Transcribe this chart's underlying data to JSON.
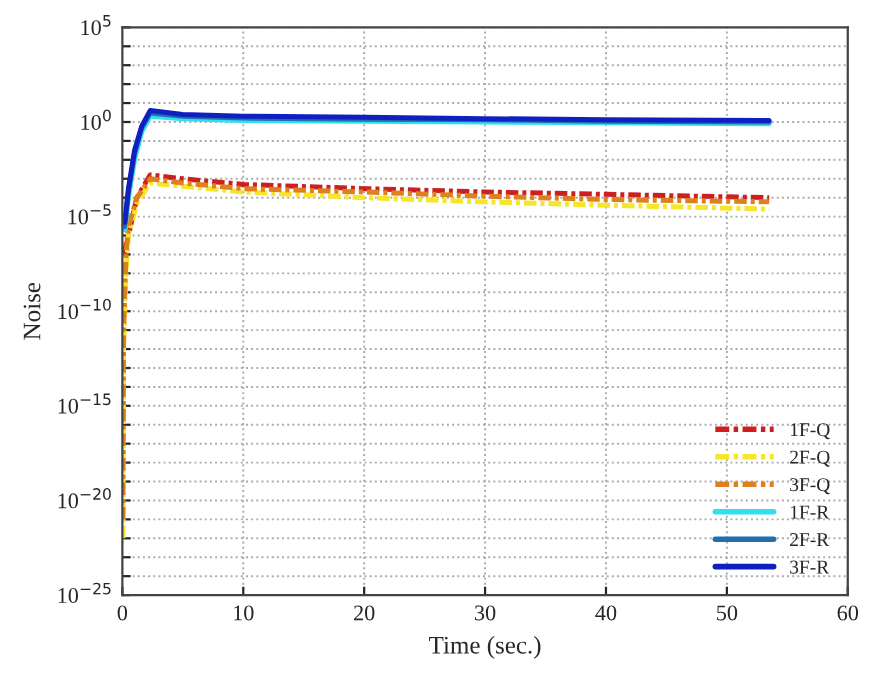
{
  "chart_data": {
    "type": "line",
    "xlabel": "Time (sec.)",
    "ylabel": "Noise",
    "log": "y",
    "xlim": [
      0,
      60
    ],
    "xticks": [
      0,
      10,
      20,
      30,
      40,
      50,
      60
    ],
    "ylim": [
      1e-25,
      100000.0
    ],
    "yticks": [
      {
        "value": 1e-25,
        "label": "10$^{−25}$"
      },
      {
        "value": 1e-24,
        "label": null
      },
      {
        "value": 1e-23,
        "label": null
      },
      {
        "value": 1e-22,
        "label": null
      },
      {
        "value": 1e-21,
        "label": null
      },
      {
        "value": 1e-20,
        "label": "10$^{−20}$"
      },
      {
        "value": 1e-19,
        "label": null
      },
      {
        "value": 1e-18,
        "label": null
      },
      {
        "value": 1e-17,
        "label": null
      },
      {
        "value": 1e-16,
        "label": null
      },
      {
        "value": 1e-15,
        "label": "10$^{−15}$"
      },
      {
        "value": 1e-14,
        "label": null
      },
      {
        "value": 1e-13,
        "label": null
      },
      {
        "value": 1e-12,
        "label": null
      },
      {
        "value": 1e-11,
        "label": null
      },
      {
        "value": 1e-10,
        "label": "10$^{−10}$"
      },
      {
        "value": 1e-09,
        "label": null
      },
      {
        "value": 1e-08,
        "label": null
      },
      {
        "value": 1e-07,
        "label": null
      },
      {
        "value": 1e-06,
        "label": null
      },
      {
        "value": 1e-05,
        "label": "10$^{−5}$"
      },
      {
        "value": 0.0001,
        "label": null
      },
      {
        "value": 0.001,
        "label": null
      },
      {
        "value": 0.01,
        "label": null
      },
      {
        "value": 0.1,
        "label": null
      },
      {
        "value": 1,
        "label": "10$^{0}$"
      },
      {
        "value": 10,
        "label": null
      },
      {
        "value": 100,
        "label": null
      },
      {
        "value": 1000,
        "label": null
      },
      {
        "value": 10000,
        "label": null
      },
      {
        "value": 100000,
        "label": "10$^{5}$"
      }
    ],
    "grid": true,
    "legend": "bottom right",
    "series": [
      {
        "name": "1F-Q",
        "color": "#cc2020",
        "line_style": "dashdot",
        "x": [
          0.1,
          0.5,
          1.2,
          2.3,
          5,
          10,
          20,
          30,
          40,
          53.5
        ],
        "values": [
          1e-07,
          1e-06,
          0.0001,
          0.0016,
          0.001,
          0.0005,
          0.0003,
          0.0002,
          0.00015,
          0.0001
        ]
      },
      {
        "name": "2F-Q",
        "color": "#f5e62a",
        "line_style": "dashdot",
        "x": [
          0.05,
          0.1,
          0.3,
          0.5,
          1.2,
          2.3,
          5,
          10,
          20,
          30,
          40,
          53.5
        ],
        "values": [
          1e-22,
          1e-12,
          1e-08,
          1e-06,
          5e-05,
          0.0006,
          0.0004,
          0.0002,
          0.0001,
          6e-05,
          4e-05,
          2.5e-05
        ]
      },
      {
        "name": "3F-Q",
        "color": "#dd8020",
        "line_style": "dashdot",
        "x": [
          0.05,
          0.1,
          0.3,
          0.5,
          1.2,
          2.3,
          5,
          10,
          20,
          30,
          40,
          53.5
        ],
        "values": [
          1e-21,
          1e-11,
          1e-07,
          3e-06,
          0.0001,
          0.001,
          0.0006,
          0.0003,
          0.0002,
          0.00012,
          8e-05,
          6e-05
        ]
      },
      {
        "name": "1F-R",
        "color": "#30e0f0",
        "line_style": "solid",
        "x": [
          0.2,
          0.5,
          1,
          1.6,
          2.3,
          5,
          10,
          20,
          30,
          40,
          53.5
        ],
        "values": [
          2e-06,
          0.0001,
          0.01,
          0.3,
          2,
          1.5,
          1.2,
          1.1,
          1,
          0.9,
          0.8
        ]
      },
      {
        "name": "2F-R",
        "color": "#2070b0",
        "line_style": "solid",
        "x": [
          0.2,
          0.5,
          1,
          1.6,
          2.3,
          5,
          10,
          20,
          30,
          40,
          53.5
        ],
        "values": [
          3e-06,
          0.0002,
          0.02,
          0.5,
          3,
          2,
          1.6,
          1.4,
          1.3,
          1.1,
          1
        ]
      },
      {
        "name": "3F-R",
        "color": "#1020c0",
        "line_style": "solid",
        "x": [
          0.2,
          0.5,
          1,
          1.6,
          2.3,
          5,
          10,
          20,
          30,
          40,
          53.5
        ],
        "values": [
          5e-06,
          0.0003,
          0.03,
          0.6,
          4,
          2.5,
          2,
          1.8,
          1.5,
          1.3,
          1.2
        ]
      }
    ]
  }
}
